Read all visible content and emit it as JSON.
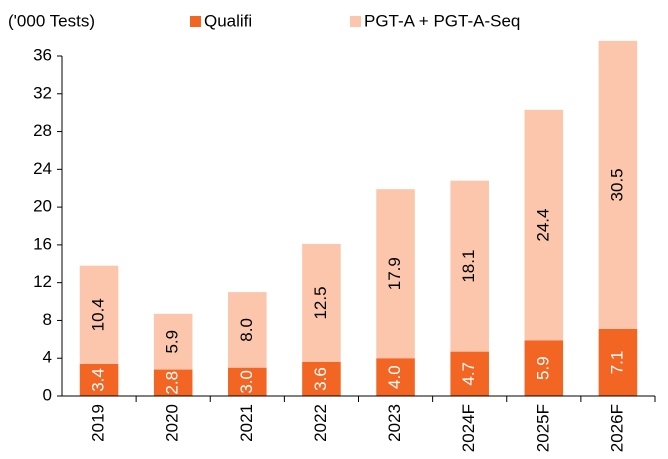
{
  "chart_data": {
    "type": "stacked_bar",
    "y_label": "('000 Tests)",
    "categories": [
      "2019",
      "2020",
      "2021",
      "2022",
      "2023",
      "2024F",
      "2025F",
      "2026F"
    ],
    "series": [
      {
        "name": "Qualifi",
        "color": "#f26522",
        "values": [
          3.4,
          2.8,
          3.0,
          3.6,
          4.0,
          4.7,
          5.9,
          7.1
        ],
        "value_labels": [
          "3.4",
          "2.8",
          "3.0",
          "3.6",
          "4.0",
          "4.7",
          "5.9",
          "7.1"
        ]
      },
      {
        "name": "PGT-A + PGT-A-Seq",
        "color": "#fbc6ac",
        "values": [
          10.4,
          5.9,
          8.0,
          12.5,
          17.9,
          18.1,
          24.4,
          30.5
        ],
        "value_labels": [
          "10.4",
          "5.9",
          "8.0",
          "12.5",
          "17.9",
          "18.1",
          "24.4",
          "30.5"
        ]
      }
    ],
    "ylim": [
      0,
      36
    ],
    "yticks": [
      0,
      4,
      8,
      12,
      16,
      20,
      24,
      28,
      32,
      36
    ],
    "grid": false
  }
}
